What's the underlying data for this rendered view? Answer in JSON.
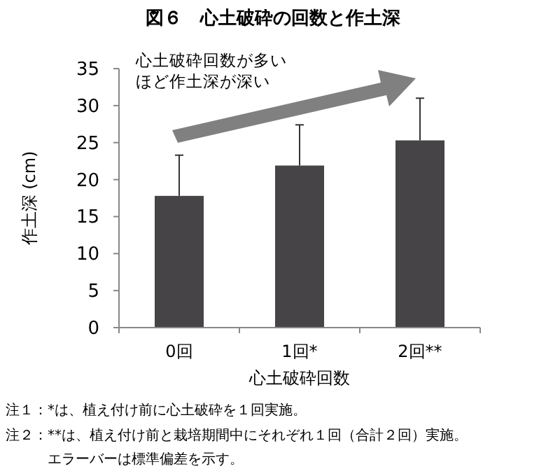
{
  "chart_data": {
    "type": "bar",
    "title": "図６　心土破砕の回数と作土深",
    "xlabel": "心土破砕回数",
    "ylabel": "作土深 (cm)",
    "categories": [
      "0回",
      "1回*",
      "2回**"
    ],
    "values": [
      17.8,
      21.9,
      25.3
    ],
    "errors": [
      [
        17.8,
        23.3
      ],
      [
        21.9,
        27.4
      ],
      [
        25.3,
        31.0
      ]
    ],
    "color": "#464446",
    "ylim": [
      0,
      35
    ],
    "yticks": [
      0,
      5,
      10,
      15,
      20,
      25,
      30,
      35
    ],
    "grid": false,
    "annotations": [
      "心土破砕回数が多い",
      "ほど作土深が深い",
      "注１：*は、植え付け前に心土破砕を１回実施。",
      "注２：**は、植え付け前と栽培期間中にそれぞれ１回（合計２回）実施。",
      "　　　エラーバーは標準偏差を示す。"
    ]
  }
}
